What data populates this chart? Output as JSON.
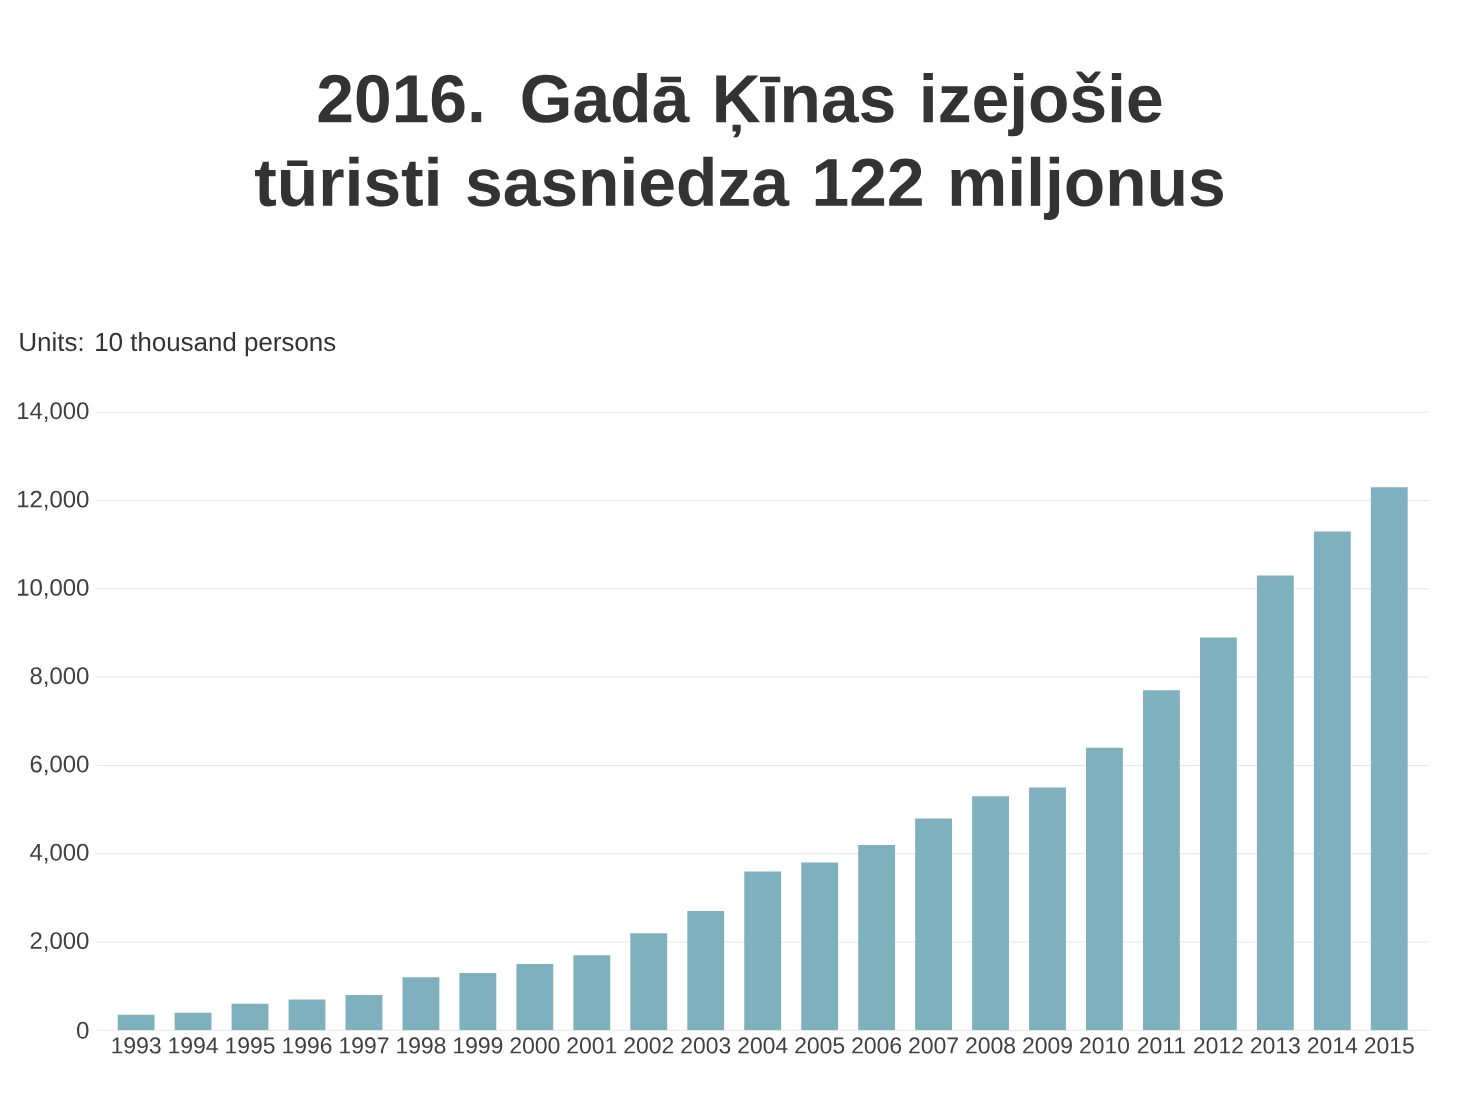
{
  "chart_data": {
    "type": "bar",
    "title": "2016. Gadā Ķīnas izejošie tūristi sasniedza 122 miljonus",
    "annotations": [
      "Units: 10 thousand persons"
    ],
    "categories": [
      "1993",
      "1994",
      "1995",
      "1996",
      "1997",
      "1998",
      "1999",
      "2000",
      "2001",
      "2002",
      "2003",
      "2004",
      "2005",
      "2006",
      "2007",
      "2008",
      "2009",
      "2010",
      "2011",
      "2012",
      "2013",
      "2014",
      "2015"
    ],
    "values": [
      350,
      400,
      600,
      700,
      800,
      1200,
      1300,
      1500,
      1700,
      2200,
      2700,
      3600,
      3800,
      4200,
      4800,
      5300,
      5500,
      6400,
      7700,
      8900,
      10300,
      11300,
      12300
    ],
    "color": "#7fb0bd",
    "ylim": [
      0,
      14000
    ],
    "yticks": [
      0,
      {
        "value": 2000,
        "label": "2,000"
      },
      {
        "value": 4000,
        "label": "4,000"
      },
      {
        "value": 6000,
        "label": "6,000"
      },
      {
        "value": 8000,
        "label": "8,000"
      },
      {
        "value": 10000,
        "label": "10,000"
      },
      {
        "value": 12000,
        "label": "12,000"
      },
      {
        "value": 14000,
        "label": "14,000"
      }
    ],
    "grid": "y"
  }
}
